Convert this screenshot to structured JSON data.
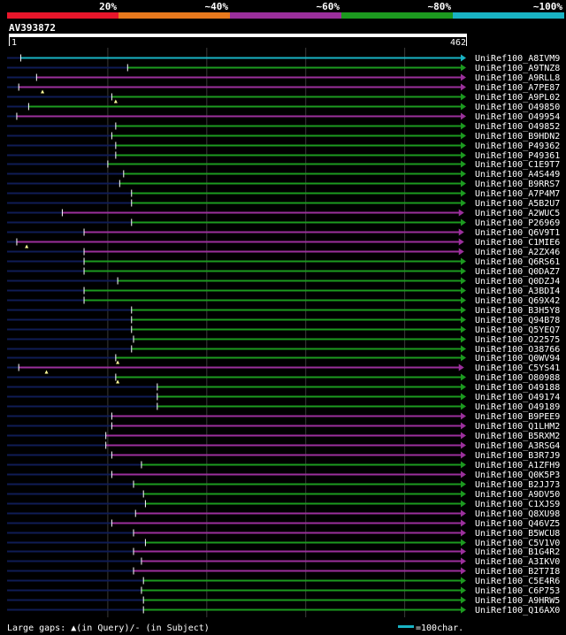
{
  "legend_bands": [
    {
      "label": "20%",
      "color": "#e8162b"
    },
    {
      "label": "~40%",
      "color": "#e8791d"
    },
    {
      "label": "~60%",
      "color": "#9b2f9c"
    },
    {
      "label": "~80%",
      "color": "#1c9a1f"
    },
    {
      "label": "~100%",
      "color": "#19b3c4"
    }
  ],
  "query": {
    "name": "AV393872",
    "start_label": "1",
    "end_label": "462",
    "length": 462
  },
  "colors": {
    "background": "#000000",
    "query_bar": "#ffffff",
    "leader": "#0f1c55",
    "grid": "#3a3a3a",
    "gap_marker": "#ffff99"
  },
  "footer": {
    "text": "Large gaps: ▲(in Query)/- (in Subject)",
    "scale_label": "=100char.",
    "scale_color": "#19b3c4",
    "scale_chars": 100
  },
  "hits": [
    {
      "label": "UniRef100_A8IVM9",
      "start": 12,
      "end": 462,
      "identity": "~100%"
    },
    {
      "label": "UniRef100_A9TNZ8",
      "start": 120,
      "end": 462,
      "identity": "~80%"
    },
    {
      "label": "UniRef100_A9RLL8",
      "start": 28,
      "end": 462,
      "identity": "~60%"
    },
    {
      "label": "UniRef100_A7PE87",
      "start": 10,
      "end": 462,
      "identity": "~60%",
      "query_gap": 34
    },
    {
      "label": "UniRef100_A9PL02",
      "start": 104,
      "end": 462,
      "identity": "~80%",
      "query_gap": 108
    },
    {
      "label": "UniRef100_O49850",
      "start": 20,
      "end": 462,
      "identity": "~80%"
    },
    {
      "label": "UniRef100_O49954",
      "start": 8,
      "end": 462,
      "identity": "~60%"
    },
    {
      "label": "UniRef100_O49852",
      "start": 108,
      "end": 462,
      "identity": "~80%"
    },
    {
      "label": "UniRef100_B9HDN2",
      "start": 104,
      "end": 462,
      "identity": "~80%"
    },
    {
      "label": "UniRef100_P49362",
      "start": 108,
      "end": 462,
      "identity": "~80%"
    },
    {
      "label": "UniRef100_P49361",
      "start": 108,
      "end": 462,
      "identity": "~80%"
    },
    {
      "label": "UniRef100_C1E9T7",
      "start": 100,
      "end": 462,
      "identity": "~80%"
    },
    {
      "label": "UniRef100_A4S449",
      "start": 116,
      "end": 462,
      "identity": "~80%"
    },
    {
      "label": "UniRef100_B9RRS7",
      "start": 112,
      "end": 462,
      "identity": "~80%"
    },
    {
      "label": "UniRef100_A7P4M7",
      "start": 124,
      "end": 462,
      "identity": "~80%"
    },
    {
      "label": "UniRef100_A5B2U7",
      "start": 124,
      "end": 462,
      "identity": "~80%"
    },
    {
      "label": "UniRef100_A2WUC5",
      "start": 54,
      "end": 460,
      "identity": "~60%"
    },
    {
      "label": "UniRef100_P26969",
      "start": 124,
      "end": 462,
      "identity": "~80%"
    },
    {
      "label": "UniRef100_Q6V9T1",
      "start": 76,
      "end": 460,
      "identity": "~60%"
    },
    {
      "label": "UniRef100_C1MIE6",
      "start": 8,
      "end": 460,
      "identity": "~60%",
      "query_gap": 18
    },
    {
      "label": "UniRef100_A2ZX46",
      "start": 76,
      "end": 460,
      "identity": "~60%"
    },
    {
      "label": "UniRef100_Q6RS61",
      "start": 76,
      "end": 462,
      "identity": "~80%"
    },
    {
      "label": "UniRef100_Q0DAZ7",
      "start": 76,
      "end": 462,
      "identity": "~80%"
    },
    {
      "label": "UniRef100_Q0DZJ4",
      "start": 110,
      "end": 462,
      "identity": "~80%"
    },
    {
      "label": "UniRef100_A3BDI4",
      "start": 76,
      "end": 462,
      "identity": "~80%"
    },
    {
      "label": "UniRef100_Q69X42",
      "start": 76,
      "end": 462,
      "identity": "~80%"
    },
    {
      "label": "UniRef100_B3H5Y8",
      "start": 124,
      "end": 462,
      "identity": "~80%"
    },
    {
      "label": "UniRef100_Q94B78",
      "start": 124,
      "end": 462,
      "identity": "~80%"
    },
    {
      "label": "UniRef100_Q5YEQ7",
      "start": 124,
      "end": 462,
      "identity": "~80%"
    },
    {
      "label": "UniRef100_O22575",
      "start": 126,
      "end": 462,
      "identity": "~80%"
    },
    {
      "label": "UniRef100_O38766",
      "start": 124,
      "end": 462,
      "identity": "~80%"
    },
    {
      "label": "UniRef100_Q0WV94",
      "start": 108,
      "end": 462,
      "identity": "~80%",
      "query_gap": 110
    },
    {
      "label": "UniRef100_C5YS41",
      "start": 10,
      "end": 460,
      "identity": "~60%",
      "query_gap": 38
    },
    {
      "label": "UniRef100_O80988",
      "start": 108,
      "end": 462,
      "identity": "~80%",
      "query_gap": 110
    },
    {
      "label": "UniRef100_O49188",
      "start": 150,
      "end": 462,
      "identity": "~80%"
    },
    {
      "label": "UniRef100_O49174",
      "start": 150,
      "end": 462,
      "identity": "~80%"
    },
    {
      "label": "UniRef100_O49189",
      "start": 150,
      "end": 462,
      "identity": "~80%"
    },
    {
      "label": "UniRef100_B9PEE9",
      "start": 104,
      "end": 462,
      "identity": "~60%"
    },
    {
      "label": "UniRef100_Q1LHM2",
      "start": 104,
      "end": 462,
      "identity": "~60%"
    },
    {
      "label": "UniRef100_B5RXM2",
      "start": 98,
      "end": 462,
      "identity": "~60%"
    },
    {
      "label": "UniRef100_A3RSG4",
      "start": 98,
      "end": 462,
      "identity": "~60%"
    },
    {
      "label": "UniRef100_B3R7J9",
      "start": 104,
      "end": 462,
      "identity": "~60%"
    },
    {
      "label": "UniRef100_A1ZFH9",
      "start": 134,
      "end": 462,
      "identity": "~80%"
    },
    {
      "label": "UniRef100_Q0K5P3",
      "start": 104,
      "end": 462,
      "identity": "~60%"
    },
    {
      "label": "UniRef100_B2JJ73",
      "start": 126,
      "end": 462,
      "identity": "~80%"
    },
    {
      "label": "UniRef100_A9DV50",
      "start": 136,
      "end": 462,
      "identity": "~80%"
    },
    {
      "label": "UniRef100_C1XJS9",
      "start": 138,
      "end": 462,
      "identity": "~80%"
    },
    {
      "label": "UniRef100_Q8XU98",
      "start": 128,
      "end": 462,
      "identity": "~60%"
    },
    {
      "label": "UniRef100_Q46VZ5",
      "start": 104,
      "end": 462,
      "identity": "~60%"
    },
    {
      "label": "UniRef100_B5WCU8",
      "start": 126,
      "end": 462,
      "identity": "~60%"
    },
    {
      "label": "UniRef100_C5V1V0",
      "start": 138,
      "end": 462,
      "identity": "~80%"
    },
    {
      "label": "UniRef100_B1G4R2",
      "start": 126,
      "end": 462,
      "identity": "~60%"
    },
    {
      "label": "UniRef100_A3IKV0",
      "start": 134,
      "end": 462,
      "identity": "~60%"
    },
    {
      "label": "UniRef100_B2T7I8",
      "start": 126,
      "end": 462,
      "identity": "~60%"
    },
    {
      "label": "UniRef100_C5E4R6",
      "start": 136,
      "end": 462,
      "identity": "~80%"
    },
    {
      "label": "UniRef100_C6P753",
      "start": 134,
      "end": 462,
      "identity": "~80%"
    },
    {
      "label": "UniRef100_A9HRW5",
      "start": 136,
      "end": 462,
      "identity": "~80%"
    },
    {
      "label": "UniRef100_Q16AX0",
      "start": 136,
      "end": 462,
      "identity": "~80%"
    }
  ]
}
